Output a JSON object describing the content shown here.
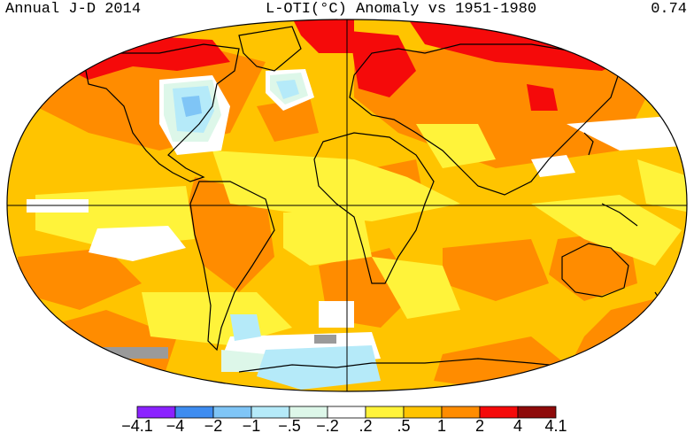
{
  "header": {
    "left": "Annual J-D 2014",
    "center": "L-OTI(°C) Anomaly vs 1951-1980",
    "right": "0.74"
  },
  "legend": {
    "bins": [
      {
        "color": "#8B22FF",
        "label": "-4.1"
      },
      {
        "color": "#3E8CF0",
        "label": "-4"
      },
      {
        "color": "#7FC5F6",
        "label": "-2"
      },
      {
        "color": "#B5EAF9",
        "label": "-1"
      },
      {
        "color": "#DDF7E9",
        "label": "-.5"
      },
      {
        "color": "#FFFFFF",
        "label": "-.2"
      },
      {
        "color": "#FFF33A",
        "label": ".2"
      },
      {
        "color": "#FFC400",
        "label": ".5"
      },
      {
        "color": "#FF8C00",
        "label": "1"
      },
      {
        "color": "#F50A0A",
        "label": "2"
      },
      {
        "color": "#8E0A0A",
        "label": "4"
      }
    ],
    "last_label": "4.1"
  },
  "colors": {
    "missing": "#9A9A9A",
    "coast": "#000000"
  }
}
